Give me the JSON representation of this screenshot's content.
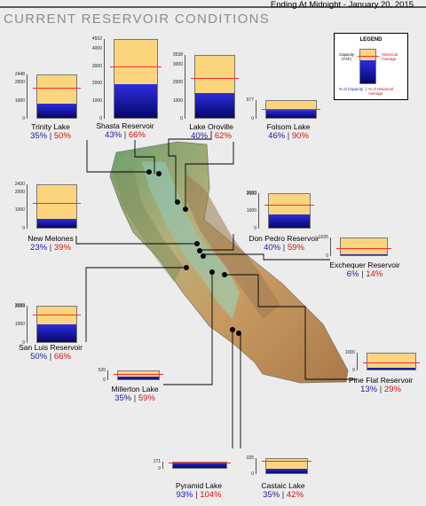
{
  "header": {
    "title": "CURRENT RESERVOIR CONDITIONS",
    "date": "Ending At Midnight - January 20, 2015"
  },
  "legend": {
    "title": "LEGEND",
    "capacity": "Capacity (TAF)",
    "historical": "Historical Average",
    "pct_capacity": "% of Capacity",
    "pct_historical": "% of Historical Average",
    "separator": "|"
  },
  "colors": {
    "capacity_fill": "#fbd57e",
    "storage_fill": "#1f1fc8",
    "historical_line": "#ff2a2a",
    "pct_capacity_text": "#1a1aa8",
    "pct_historical_text": "#d21212"
  },
  "reservoirs": [
    {
      "name": "Trinity Lake",
      "ticks": [
        "2448",
        "2000",
        "1000",
        "0"
      ],
      "pct_capacity": "35%",
      "pct_historical": "50%",
      "capacity_taf": 2448,
      "fraction_of_capacity": 0.35,
      "fraction_of_historical": 0.5
    },
    {
      "name": "Shasta Reservoir",
      "ticks": [
        "4552",
        "4000",
        "3000",
        "2000",
        "1000",
        "0"
      ],
      "pct_capacity": "43%",
      "pct_historical": "66%",
      "capacity_taf": 4552,
      "fraction_of_capacity": 0.43,
      "fraction_of_historical": 0.66
    },
    {
      "name": "Lake Oroville",
      "ticks": [
        "3538",
        "3000",
        "2000",
        "1000",
        "0"
      ],
      "pct_capacity": "40%",
      "pct_historical": "62%",
      "capacity_taf": 3538,
      "fraction_of_capacity": 0.4,
      "fraction_of_historical": 0.62
    },
    {
      "name": "Folsom Lake",
      "ticks": [
        "977",
        "0"
      ],
      "pct_capacity": "46%",
      "pct_historical": "90%",
      "capacity_taf": 977,
      "fraction_of_capacity": 0.46,
      "fraction_of_historical": 0.9
    },
    {
      "name": "New Melones",
      "ticks": [
        "2420",
        "2000",
        "1000",
        "0"
      ],
      "pct_capacity": "23%",
      "pct_historical": "39%",
      "capacity_taf": 2420,
      "fraction_of_capacity": 0.23,
      "fraction_of_historical": 0.39
    },
    {
      "name": "Don Pedro Reservoir",
      "ticks": [
        "2030",
        "2000",
        "1000",
        "0"
      ],
      "pct_capacity": "40%",
      "pct_historical": "59%",
      "capacity_taf": 2030,
      "fraction_of_capacity": 0.4,
      "fraction_of_historical": 0.59
    },
    {
      "name": "Exchequer Reservoir",
      "ticks": [
        "1025",
        "0"
      ],
      "pct_capacity": "6%",
      "pct_historical": "14%",
      "capacity_taf": 1025,
      "fraction_of_capacity": 0.06,
      "fraction_of_historical": 0.14
    },
    {
      "name": "San Luis Reservoir",
      "ticks": [
        "2039",
        "2000",
        "1000",
        "0"
      ],
      "pct_capacity": "50%",
      "pct_historical": "66%",
      "capacity_taf": 2039,
      "fraction_of_capacity": 0.5,
      "fraction_of_historical": 0.66
    },
    {
      "name": "Millerton Lake",
      "ticks": [
        "520",
        "0"
      ],
      "pct_capacity": "35%",
      "pct_historical": "59%",
      "capacity_taf": 520,
      "fraction_of_capacity": 0.35,
      "fraction_of_historical": 0.59
    },
    {
      "name": "Pine Flat Reservoir",
      "ticks": [
        "1000",
        "0"
      ],
      "pct_capacity": "13%",
      "pct_historical": "29%",
      "capacity_taf": 1000,
      "fraction_of_capacity": 0.13,
      "fraction_of_historical": 0.29
    },
    {
      "name": "Pyramid Lake",
      "ticks": [
        "171",
        "0"
      ],
      "pct_capacity": "93%",
      "pct_historical": "104%",
      "capacity_taf": 171,
      "fraction_of_capacity": 0.93,
      "fraction_of_historical": 1.04
    },
    {
      "name": "Castaic Lake",
      "ticks": [
        "325",
        "0"
      ],
      "pct_capacity": "35%",
      "pct_historical": "42%",
      "capacity_taf": 325,
      "fraction_of_capacity": 0.35,
      "fraction_of_historical": 0.42
    }
  ]
}
